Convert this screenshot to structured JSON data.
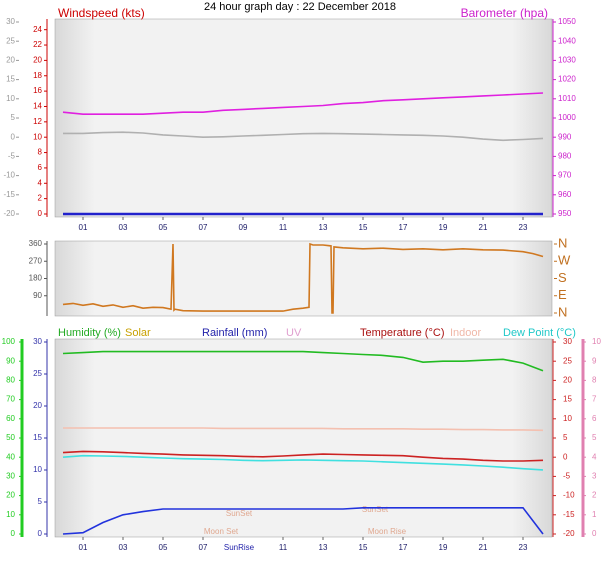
{
  "title": "24 hour graph day : 22 December 2018",
  "chart_data": [
    {
      "type": "line",
      "labels": [
        {
          "text": "Windspeed (kts)",
          "color": "#cc0000"
        },
        {
          "text": "Barometer (hpa)",
          "color": "#cc22cc"
        }
      ],
      "x": [
        0,
        1,
        2,
        3,
        4,
        5,
        6,
        7,
        8,
        9,
        10,
        11,
        12,
        13,
        14,
        15,
        16,
        17,
        18,
        19,
        20,
        21,
        22,
        23,
        24
      ],
      "xlim": [
        -0.4,
        24.45
      ],
      "xticks": [
        {
          "value": 1,
          "label": "01"
        },
        {
          "value": 3,
          "label": "03"
        },
        {
          "value": 5,
          "label": "05"
        },
        {
          "value": 7,
          "label": "07"
        },
        {
          "value": 9,
          "label": "09"
        },
        11,
        13,
        15,
        17,
        19,
        21,
        23
      ],
      "axes": [
        {
          "lim": [
            0,
            25
          ],
          "ticks": [
            0,
            2,
            4,
            6,
            8,
            10,
            12,
            14,
            16,
            18,
            20,
            22,
            24
          ],
          "color": "#cc0000"
        },
        {
          "lim": [
            950,
            1050
          ],
          "ticks": [
            950,
            960,
            970,
            980,
            990,
            1000,
            1010,
            1020,
            1030,
            1040,
            1050
          ],
          "color": "#cc22cc"
        },
        {
          "lim": [
            -20,
            30
          ],
          "ticks": [
            -20,
            -15,
            -10,
            -5,
            0,
            5,
            10,
            15,
            20,
            25,
            30
          ],
          "color": "#999999"
        }
      ],
      "series": [
        {
          "axis": 1,
          "color": "#e020e0",
          "values": [
            1003,
            1002,
            1002,
            1002,
            1002,
            1002.5,
            1003,
            1003,
            1004,
            1004.5,
            1005,
            1005.5,
            1006,
            1006.5,
            1007.5,
            1008,
            1009,
            1009.5,
            1010,
            1010.5,
            1011,
            1011.5,
            1012,
            1012.5,
            1013
          ]
        },
        {
          "axis": 2,
          "color": "#b0b0b0",
          "values": [
            1,
            1,
            1.2,
            1.3,
            1.1,
            0.6,
            0.3,
            0,
            0.1,
            0.3,
            0.5,
            0.7,
            0.9,
            1,
            0.9,
            0.8,
            0.7,
            0.6,
            0.5,
            0.3,
            0,
            -0.5,
            -0.8,
            -0.6,
            -0.3
          ]
        },
        {
          "axis": 0,
          "color": "#2222cc",
          "values": [
            0,
            0,
            0,
            0,
            0,
            0,
            0,
            0,
            0,
            0,
            0,
            0,
            0,
            0,
            0,
            0,
            0,
            0,
            0,
            0,
            0,
            0,
            0,
            0,
            0
          ]
        }
      ]
    },
    {
      "type": "line",
      "labels": [],
      "x": [
        0,
        0.5,
        1,
        1.5,
        2,
        2.5,
        3,
        3.5,
        4,
        4.5,
        5,
        5.4,
        5.5,
        5.55,
        5.6,
        6,
        7,
        8,
        9,
        10,
        11,
        11.5,
        12,
        12.3,
        12.35,
        12.5,
        13,
        13.4,
        13.45,
        13.5,
        13.55,
        14,
        15,
        16,
        17,
        18,
        19,
        20,
        21,
        22,
        23,
        23.5,
        24
      ],
      "xlim": [
        -0.4,
        24.45
      ],
      "xticks": [],
      "axes": [
        {
          "lim": [
            0,
            360
          ],
          "ticks": [
            90,
            180,
            270,
            360
          ],
          "color": "#555555"
        },
        {
          "lim": [
            0,
            360
          ],
          "ticks": [
            {
              "value": 0,
              "label": "N"
            },
            {
              "value": 90,
              "label": "E"
            },
            {
              "value": 180,
              "label": "S"
            },
            {
              "value": 270,
              "label": "W"
            },
            {
              "value": 360,
              "label": "N"
            }
          ],
          "color": "#c07020"
        }
      ],
      "series": [
        {
          "axis": 0,
          "color": "#d07820",
          "values": [
            45,
            50,
            40,
            48,
            35,
            42,
            30,
            38,
            25,
            30,
            28,
            20,
            360,
            15,
            20,
            12,
            10,
            10,
            10,
            10,
            10,
            20,
            25,
            30,
            360,
            355,
            355,
            350,
            0,
            0,
            345,
            340,
            335,
            338,
            332,
            335,
            330,
            335,
            330,
            328,
            320,
            310,
            295
          ]
        }
      ]
    },
    {
      "type": "line",
      "labels": [
        {
          "text": "Humidity (%)",
          "color": "#22aa22"
        },
        {
          "text": "Solar",
          "color": "#c8a000"
        },
        {
          "text": "Rainfall (mm)",
          "color": "#2222aa"
        },
        {
          "text": "UV",
          "color": "#e0a0d0"
        },
        {
          "text": "Temperature (°C)",
          "color": "#aa1111"
        },
        {
          "text": "Indoor",
          "color": "#f0b8a8"
        },
        {
          "text": "Dew Point (°C)",
          "color": "#20c8c8"
        }
      ],
      "annotations": [
        "SunSet",
        "SunSet",
        "Moon Set",
        "Moon Rise",
        "SunRise"
      ],
      "x": [
        0,
        1,
        2,
        3,
        4,
        5,
        6,
        7,
        8,
        9,
        10,
        11,
        12,
        13,
        14,
        15,
        16,
        17,
        18,
        19,
        20,
        21,
        22,
        23,
        24
      ],
      "xlim": [
        -0.4,
        24.45
      ],
      "xticks": [
        {
          "value": 1,
          "label": "01"
        },
        {
          "value": 3,
          "label": "03"
        },
        {
          "value": 5,
          "label": "05"
        },
        {
          "value": 7,
          "label": "07"
        },
        11,
        13,
        15,
        17,
        19,
        21,
        23
      ],
      "axes": [
        {
          "lim": [
            0,
            100
          ],
          "ticks": [
            0,
            10,
            20,
            30,
            40,
            50,
            60,
            70,
            80,
            90,
            100
          ],
          "color": "#22cc22"
        },
        {
          "lim": [
            0,
            30
          ],
          "ticks": [
            0,
            5,
            10,
            15,
            20,
            25,
            30
          ],
          "color": "#3333aa"
        },
        {
          "lim": [
            -20,
            30
          ],
          "ticks": [
            -20,
            -15,
            -10,
            -5,
            0,
            5,
            10,
            15,
            20,
            25,
            30
          ],
          "color": "#cc2222"
        },
        {
          "lim": [
            0,
            10
          ],
          "ticks": [
            0,
            1,
            2,
            3,
            4,
            5,
            6,
            7,
            8,
            9,
            10
          ],
          "color": "#e080b0"
        }
      ],
      "series": [
        {
          "axis": 0,
          "color": "#22bb22",
          "values": [
            94,
            94.5,
            95,
            95,
            95,
            95,
            95,
            95,
            95,
            95,
            95,
            95,
            95,
            94.5,
            94,
            93.5,
            93,
            92,
            89.5,
            90,
            90,
            90.5,
            91,
            89,
            85
          ]
        },
        {
          "axis": 2,
          "color": "#f4c0b0",
          "values": [
            7.6,
            7.6,
            7.6,
            7.6,
            7.6,
            7.6,
            7.6,
            7.6,
            7.5,
            7.5,
            7.5,
            7.5,
            7.5,
            7.5,
            7.4,
            7.4,
            7.4,
            7.4,
            7.3,
            7.3,
            7.2,
            7.2,
            7.1,
            7.1,
            7
          ]
        },
        {
          "axis": 2,
          "color": "#cc2222",
          "values": [
            1.2,
            1.5,
            1.4,
            1.2,
            1,
            0.8,
            0.6,
            0.5,
            0.4,
            0.2,
            0.1,
            0.3,
            0.6,
            0.8,
            0.7,
            0.6,
            0.5,
            0.4,
            0,
            -0.3,
            -0.5,
            -0.8,
            -1,
            -1,
            -0.8
          ]
        },
        {
          "axis": 2,
          "color": "#40e0e0",
          "values": [
            0,
            0.4,
            0.3,
            0.2,
            0,
            -0.2,
            -0.4,
            -0.5,
            -0.6,
            -0.8,
            -0.9,
            -0.8,
            -0.7,
            -0.8,
            -0.9,
            -1,
            -1.2,
            -1.4,
            -1.6,
            -1.8,
            -2,
            -2.3,
            -2.6,
            -3,
            -3.3
          ]
        },
        {
          "axis": 1,
          "color": "#2233dd",
          "values": [
            0,
            0.2,
            1.8,
            3,
            3.5,
            3.9,
            3.9,
            3.9,
            3.9,
            3.9,
            3.9,
            3.9,
            3.9,
            3.9,
            3.9,
            4.1,
            4.1,
            4.1,
            4.1,
            4.1,
            4.1,
            4.1,
            4.1,
            4.1,
            0
          ]
        }
      ]
    }
  ]
}
